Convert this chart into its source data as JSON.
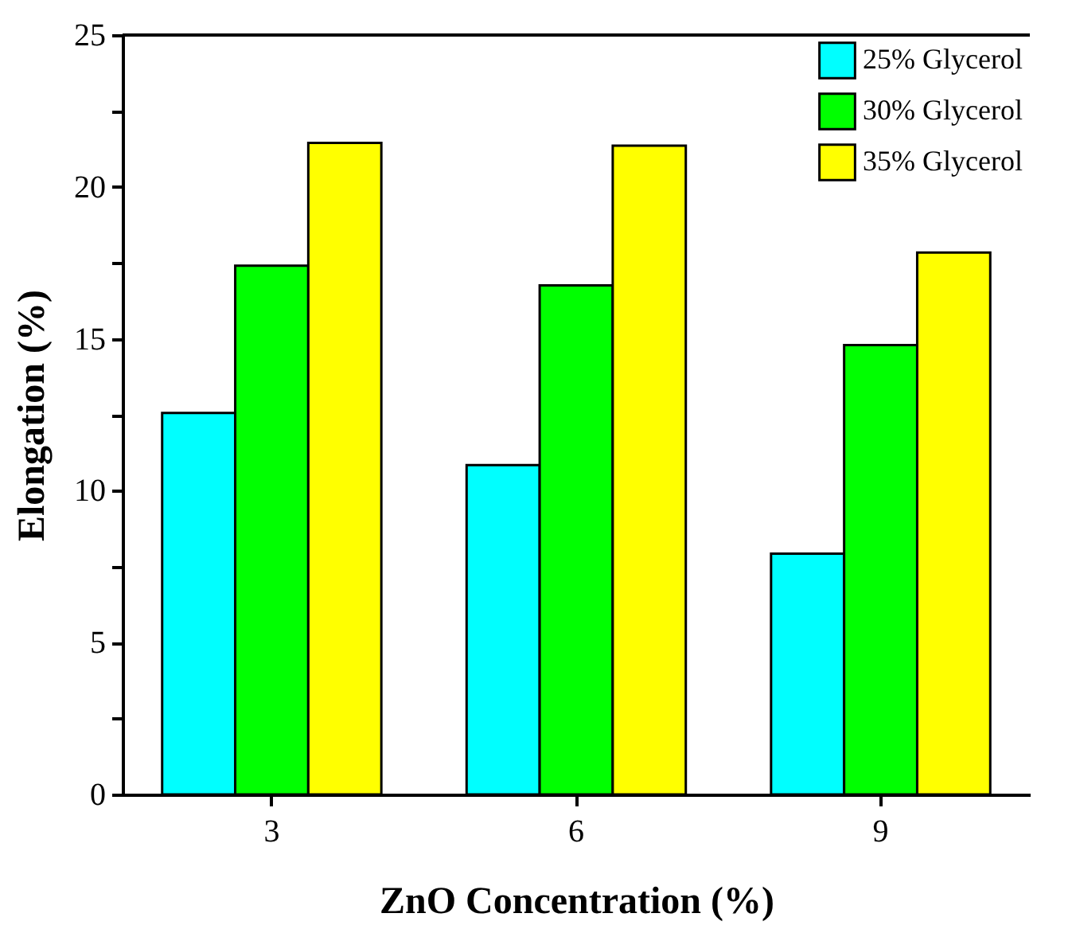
{
  "chart_data": {
    "type": "bar",
    "xlabel": "ZnO Concentration (%)",
    "ylabel": "Elongation (%)",
    "categories": [
      "3",
      "6",
      "9"
    ],
    "series": [
      {
        "name": "25% Glycerol",
        "color": "#00ffff",
        "values": [
          12.56,
          10.84,
          7.93
        ]
      },
      {
        "name": "30% Glycerol",
        "color": "#00ff00",
        "values": [
          17.41,
          16.76,
          14.79
        ]
      },
      {
        "name": "35% Glycerol",
        "color": "#ffff00",
        "values": [
          21.45,
          21.36,
          17.84
        ]
      }
    ],
    "ylim": [
      0,
      25
    ],
    "yticks": [
      0,
      {
        "value": 2.5,
        "label": null
      },
      5,
      {
        "value": 7.5,
        "label": null
      },
      10,
      {
        "value": 12.5,
        "label": null
      },
      15,
      {
        "value": 17.5,
        "label": null
      },
      20,
      {
        "value": 22.5,
        "label": null
      },
      25
    ],
    "grid": false,
    "legend": "top right"
  }
}
